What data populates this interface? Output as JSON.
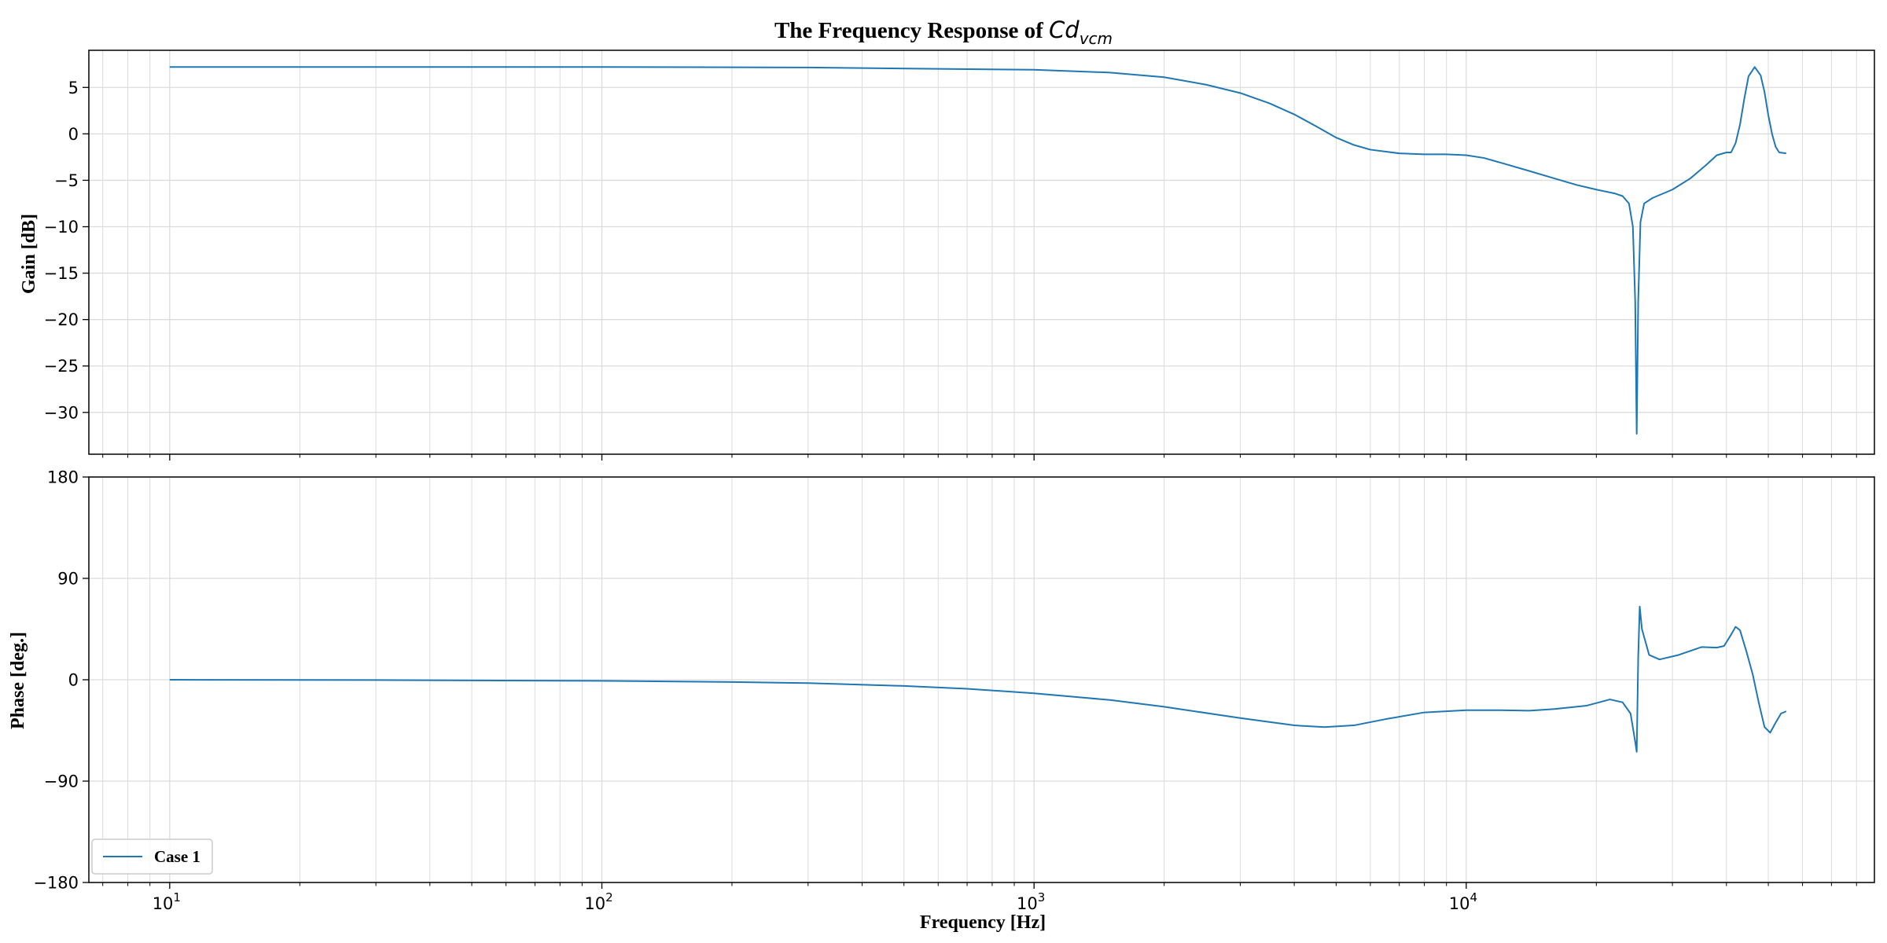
{
  "figure": {
    "title_prefix": "The Frequency Response of ",
    "title_math_base": "Cd",
    "title_math_sub": "vcm",
    "xlabel": "Frequency [Hz]",
    "xscale": "log",
    "xlim": [
      6.5,
      88000
    ],
    "x_major_ticks": [
      {
        "value": 10,
        "mantissa": "10",
        "exp": "1"
      },
      {
        "value": 100,
        "mantissa": "10",
        "exp": "2"
      },
      {
        "value": 1000,
        "mantissa": "10",
        "exp": "3"
      },
      {
        "value": 10000,
        "mantissa": "10",
        "exp": "4"
      }
    ],
    "grid": true,
    "line_color": "#1f77b4",
    "grid_color": "#dcdcdc",
    "legend": {
      "label": "Case 1",
      "position": "lower-left"
    }
  },
  "chart_data": [
    {
      "type": "line",
      "ylabel": "Gain [dB]",
      "ylim": [
        -34.5,
        9
      ],
      "yticks": [
        5,
        0,
        -5,
        -10,
        -15,
        -20,
        -25,
        -30
      ],
      "ytick_labels": [
        "5",
        "0",
        "−5",
        "−10",
        "−15",
        "−20",
        "−25",
        "−30"
      ],
      "series": [
        {
          "name": "Case 1",
          "points": [
            [
              10,
              7.2
            ],
            [
              100,
              7.2
            ],
            [
              300,
              7.15
            ],
            [
              600,
              7.0
            ],
            [
              1000,
              6.9
            ],
            [
              1500,
              6.6
            ],
            [
              2000,
              6.1
            ],
            [
              2500,
              5.3
            ],
            [
              3000,
              4.4
            ],
            [
              3500,
              3.3
            ],
            [
              4000,
              2.1
            ],
            [
              4500,
              0.8
            ],
            [
              5000,
              -0.4
            ],
            [
              5500,
              -1.2
            ],
            [
              6000,
              -1.7
            ],
            [
              7000,
              -2.1
            ],
            [
              8000,
              -2.2
            ],
            [
              9000,
              -2.2
            ],
            [
              10000,
              -2.3
            ],
            [
              11000,
              -2.6
            ],
            [
              12000,
              -3.1
            ],
            [
              14000,
              -4.0
            ],
            [
              16000,
              -4.8
            ],
            [
              18000,
              -5.5
            ],
            [
              20000,
              -6.0
            ],
            [
              22000,
              -6.4
            ],
            [
              23000,
              -6.7
            ],
            [
              23800,
              -7.5
            ],
            [
              24300,
              -10
            ],
            [
              24600,
              -18
            ],
            [
              24800,
              -32.3
            ],
            [
              25000,
              -18
            ],
            [
              25300,
              -9.5
            ],
            [
              25800,
              -7.5
            ],
            [
              27000,
              -6.9
            ],
            [
              30000,
              -6.0
            ],
            [
              33000,
              -4.8
            ],
            [
              36000,
              -3.3
            ],
            [
              38000,
              -2.3
            ],
            [
              40000,
              -2.0
            ],
            [
              41000,
              -2.0
            ],
            [
              42000,
              -1.0
            ],
            [
              43000,
              1.0
            ],
            [
              44000,
              3.8
            ],
            [
              45000,
              6.2
            ],
            [
              46500,
              7.2
            ],
            [
              48000,
              6.3
            ],
            [
              49000,
              4.5
            ],
            [
              50000,
              2.0
            ],
            [
              51000,
              0.0
            ],
            [
              52000,
              -1.4
            ],
            [
              53000,
              -2.0
            ],
            [
              55000,
              -2.1
            ]
          ]
        }
      ]
    },
    {
      "type": "line",
      "ylabel": "Phase [deg.]",
      "ylim": [
        -180,
        180
      ],
      "yticks": [
        180,
        90,
        0,
        -90,
        -180
      ],
      "ytick_labels": [
        "180",
        "90",
        "0",
        "−90",
        "−180"
      ],
      "series": [
        {
          "name": "Case 1",
          "points": [
            [
              10,
              0.0
            ],
            [
              30,
              -0.3
            ],
            [
              100,
              -1.0
            ],
            [
              200,
              -2.0
            ],
            [
              300,
              -3.0
            ],
            [
              500,
              -5.5
            ],
            [
              700,
              -8.0
            ],
            [
              1000,
              -12.0
            ],
            [
              1500,
              -18.0
            ],
            [
              2000,
              -24.0
            ],
            [
              3000,
              -34.0
            ],
            [
              4000,
              -40.5
            ],
            [
              4700,
              -42.0
            ],
            [
              5500,
              -40.5
            ],
            [
              6500,
              -35.0
            ],
            [
              8000,
              -29.0
            ],
            [
              10000,
              -27.0
            ],
            [
              12000,
              -27.0
            ],
            [
              14000,
              -27.5
            ],
            [
              16000,
              -26.0
            ],
            [
              19000,
              -23.0
            ],
            [
              21500,
              -17.5
            ],
            [
              23000,
              -20.0
            ],
            [
              24000,
              -30.0
            ],
            [
              24600,
              -55.0
            ],
            [
              24800,
              -64.0
            ],
            [
              25000,
              20.0
            ],
            [
              25200,
              65.0
            ],
            [
              25500,
              45.0
            ],
            [
              26500,
              22.0
            ],
            [
              28000,
              18.0
            ],
            [
              31000,
              22.0
            ],
            [
              35000,
              29.0
            ],
            [
              38000,
              28.5
            ],
            [
              39500,
              30.0
            ],
            [
              41000,
              40.0
            ],
            [
              42000,
              47.0
            ],
            [
              43000,
              44.0
            ],
            [
              44500,
              25.0
            ],
            [
              46000,
              5.0
            ],
            [
              47500,
              -20.0
            ],
            [
              49000,
              -42.0
            ],
            [
              50500,
              -47.0
            ],
            [
              52000,
              -38.0
            ],
            [
              53500,
              -30.0
            ],
            [
              55000,
              -28.0
            ]
          ]
        }
      ]
    }
  ]
}
